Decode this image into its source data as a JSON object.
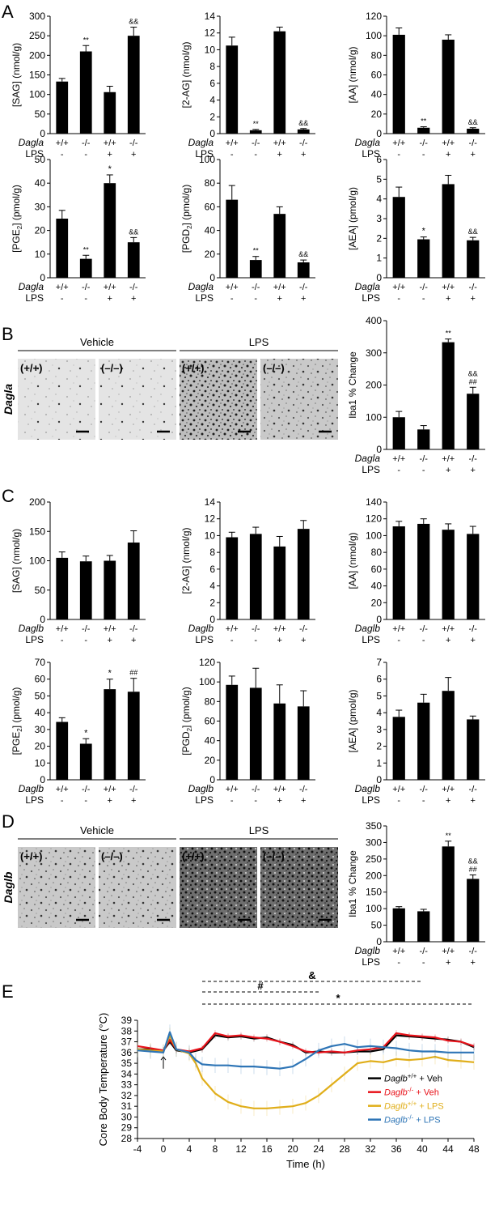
{
  "panels": {
    "A": "A",
    "B": "B",
    "C": "C",
    "D": "D",
    "E": "E"
  },
  "groups": {
    "dagla": "Dagla",
    "daglb": "Daglb",
    "lps": "LPS",
    "genotypes": [
      "+/+",
      "-/-",
      "+/+",
      "-/-"
    ],
    "lps_flags": [
      "-",
      "-",
      "+",
      "+"
    ]
  },
  "images": {
    "vehicle": "Vehicle",
    "lps": "LPS",
    "tags": [
      "(+/+)",
      "(–/–)",
      "(+/+)",
      "(–/–)"
    ],
    "dagla_textures": [
      "sparse",
      "sparse",
      "dense",
      "medium"
    ],
    "daglb_textures": [
      "medium",
      "medium",
      "dark",
      "dark"
    ]
  },
  "chart_data": [
    {
      "id": "A1",
      "type": "bar",
      "ylabel": "[SAG] (nmol/g)",
      "ylim": [
        0,
        300
      ],
      "yticks": [
        0,
        50,
        100,
        150,
        200,
        250,
        300
      ],
      "genotype_label": "Dagla",
      "values": [
        133,
        210,
        106,
        250
      ],
      "errors": [
        8,
        15,
        15,
        22
      ],
      "sig": [
        "",
        "**",
        "",
        "&&"
      ]
    },
    {
      "id": "A2",
      "type": "bar",
      "ylabel": "[2-AG] (nmol/g)",
      "ylim": [
        0,
        14
      ],
      "yticks": [
        0,
        2,
        4,
        6,
        8,
        10,
        12,
        14
      ],
      "genotype_label": "Dagla",
      "values": [
        10.5,
        0.4,
        12.2,
        0.5
      ],
      "errors": [
        1.0,
        0.1,
        0.5,
        0.1
      ],
      "sig": [
        "",
        "**",
        "",
        "&&"
      ]
    },
    {
      "id": "A3",
      "type": "bar",
      "ylabel": "[AA] (nmol/g)",
      "ylim": [
        0,
        120
      ],
      "yticks": [
        0,
        20,
        40,
        60,
        80,
        100,
        120
      ],
      "genotype_label": "Dagla",
      "values": [
        101,
        6,
        96,
        5
      ],
      "errors": [
        7,
        1,
        5,
        1
      ],
      "sig": [
        "",
        "**",
        "",
        "&&"
      ]
    },
    {
      "id": "A4",
      "type": "bar",
      "ylabel": "[PGE2] (pmol/g)",
      "ylabel_sub": "2",
      "ylim": [
        0,
        50
      ],
      "yticks": [
        0,
        10,
        20,
        30,
        40,
        50
      ],
      "genotype_label": "Dagla",
      "values": [
        25,
        8,
        40,
        15
      ],
      "errors": [
        3.5,
        1.5,
        3.5,
        2
      ],
      "sig": [
        "",
        "**",
        "*",
        "&&"
      ]
    },
    {
      "id": "A5",
      "type": "bar",
      "ylabel": "[PGD2] (pmol/g)",
      "ylabel_sub": "2",
      "ylim": [
        0,
        100
      ],
      "yticks": [
        0,
        20,
        40,
        60,
        80,
        100
      ],
      "genotype_label": "Dagla",
      "values": [
        66,
        15,
        54,
        13
      ],
      "errors": [
        12,
        3,
        6,
        2
      ],
      "sig": [
        "",
        "**",
        "",
        "&&"
      ]
    },
    {
      "id": "A6",
      "type": "bar",
      "ylabel": "[AEA] (pmol/g)",
      "ylim": [
        0,
        6
      ],
      "yticks": [
        0,
        1,
        2,
        3,
        4,
        5,
        6
      ],
      "genotype_label": "Dagla",
      "values": [
        4.1,
        1.95,
        4.75,
        1.9
      ],
      "errors": [
        0.5,
        0.12,
        0.45,
        0.15
      ],
      "sig": [
        "",
        "*",
        "",
        "&&"
      ]
    },
    {
      "id": "B",
      "type": "bar",
      "ylabel": "Iba1 % Change",
      "ylim": [
        0,
        400
      ],
      "yticks": [
        0,
        100,
        200,
        300,
        400
      ],
      "genotype_label": "Dagla",
      "values": [
        100,
        62,
        333,
        173
      ],
      "errors": [
        18,
        12,
        10,
        20
      ],
      "sig": [
        "",
        "",
        "**",
        "&&|##"
      ]
    },
    {
      "id": "C1",
      "type": "bar",
      "ylabel": "[SAG] (nmol/g)",
      "ylim": [
        0,
        200
      ],
      "yticks": [
        0,
        50,
        100,
        150,
        200
      ],
      "genotype_label": "Daglb",
      "values": [
        105,
        99,
        100,
        131
      ],
      "errors": [
        10,
        9,
        9,
        20
      ],
      "sig": [
        "",
        "",
        "",
        ""
      ]
    },
    {
      "id": "C2",
      "type": "bar",
      "ylabel": "[2-AG] (nmol/g)",
      "ylim": [
        0,
        14
      ],
      "yticks": [
        0,
        2,
        4,
        6,
        8,
        10,
        12,
        14
      ],
      "genotype_label": "Daglb",
      "values": [
        9.8,
        10.2,
        8.7,
        10.8
      ],
      "errors": [
        0.6,
        0.8,
        1.2,
        1.0
      ],
      "sig": [
        "",
        "",
        "",
        ""
      ]
    },
    {
      "id": "C3",
      "type": "bar",
      "ylabel": "[AA] (nmol/g)",
      "ylim": [
        0,
        140
      ],
      "yticks": [
        0,
        20,
        40,
        60,
        80,
        100,
        120,
        140
      ],
      "genotype_label": "Daglb",
      "values": [
        111,
        114,
        107,
        102
      ],
      "errors": [
        6,
        6,
        7,
        9
      ],
      "sig": [
        "",
        "",
        "",
        ""
      ]
    },
    {
      "id": "C4",
      "type": "bar",
      "ylabel": "[PGE2] (pmol/g)",
      "ylabel_sub": "2",
      "ylim": [
        0,
        70
      ],
      "yticks": [
        0,
        10,
        20,
        30,
        40,
        50,
        60,
        70
      ],
      "genotype_label": "Daglb",
      "values": [
        34.5,
        21.5,
        54,
        52.5
      ],
      "errors": [
        2.5,
        3,
        6,
        8
      ],
      "sig": [
        "",
        "*",
        "*",
        "##"
      ]
    },
    {
      "id": "C5",
      "type": "bar",
      "ylabel": "[PGD2] (pmol/g)",
      "ylabel_sub": "2",
      "ylim": [
        0,
        120
      ],
      "yticks": [
        0,
        20,
        40,
        60,
        80,
        100,
        120
      ],
      "genotype_label": "Daglb",
      "values": [
        97,
        94,
        78,
        75
      ],
      "errors": [
        9,
        20,
        19,
        16
      ],
      "sig": [
        "",
        "",
        "",
        ""
      ]
    },
    {
      "id": "C6",
      "type": "bar",
      "ylabel": "[AEA] (pmol/g)",
      "ylim": [
        0,
        7
      ],
      "yticks": [
        0,
        1,
        2,
        3,
        4,
        5,
        6,
        7
      ],
      "genotype_label": "Daglb",
      "values": [
        3.75,
        4.6,
        5.3,
        3.6
      ],
      "errors": [
        0.4,
        0.5,
        0.8,
        0.2
      ],
      "sig": [
        "",
        "",
        "",
        ""
      ]
    },
    {
      "id": "D",
      "type": "bar",
      "ylabel": "Iba1 % Change",
      "ylim": [
        0,
        350
      ],
      "yticks": [
        0,
        50,
        100,
        150,
        200,
        250,
        300,
        350
      ],
      "genotype_label": "Daglb",
      "values": [
        101,
        92,
        288,
        190
      ],
      "errors": [
        5,
        6,
        16,
        12
      ],
      "sig": [
        "",
        "",
        "**",
        "&&|##"
      ]
    },
    {
      "id": "E",
      "type": "line",
      "xlabel": "Time (h)",
      "ylabel": "Core Body Temperature (°C)",
      "xlim": [
        -4,
        48
      ],
      "ylim": [
        28,
        39
      ],
      "xticks": [
        -4,
        0,
        4,
        8,
        12,
        16,
        20,
        24,
        28,
        32,
        36,
        40,
        44,
        48
      ],
      "yticks": [
        28,
        29,
        30,
        31,
        32,
        33,
        34,
        35,
        36,
        37,
        38,
        39
      ],
      "legend_position": "lower-right",
      "sig_lines": [
        {
          "label": "&",
          "x1": 6,
          "x2": 40
        },
        {
          "label": "#",
          "x1": 6,
          "x2": 24
        },
        {
          "label": "*",
          "x1": 6,
          "x2": 48
        }
      ],
      "arrow_x": 0,
      "series": [
        {
          "name": "Daglb+/+ + Veh",
          "gene": "Daglb",
          "sup": "+/+",
          "suffix": " + Veh",
          "color": "#000000",
          "x": [
            -4,
            -2,
            0,
            1,
            2,
            4,
            6,
            8,
            10,
            12,
            14,
            16,
            18,
            20,
            22,
            24,
            26,
            28,
            30,
            32,
            34,
            36,
            38,
            40,
            42,
            44,
            46,
            48
          ],
          "y": [
            36.3,
            36.3,
            36.2,
            37.0,
            36.2,
            36.0,
            36.3,
            37.6,
            37.4,
            37.5,
            37.3,
            37.4,
            37.0,
            36.7,
            36.0,
            36.1,
            36.0,
            36.0,
            36.1,
            36.1,
            36.3,
            37.6,
            37.5,
            37.4,
            37.3,
            37.2,
            37.0,
            36.5
          ]
        },
        {
          "name": "Daglb-/- + Veh",
          "gene": "Daglb",
          "sup": "-/-",
          "suffix": " + Veh",
          "color": "#e8121a",
          "x": [
            -4,
            -2,
            0,
            1,
            2,
            4,
            6,
            8,
            10,
            12,
            14,
            16,
            18,
            20,
            22,
            24,
            26,
            28,
            30,
            32,
            34,
            36,
            38,
            40,
            42,
            44,
            46,
            48
          ],
          "y": [
            36.6,
            36.4,
            36.2,
            37.2,
            36.3,
            36.1,
            36.4,
            37.8,
            37.5,
            37.6,
            37.4,
            37.3,
            37.0,
            36.6,
            36.1,
            36.0,
            36.1,
            36.0,
            36.2,
            36.3,
            36.5,
            37.8,
            37.6,
            37.5,
            37.4,
            37.1,
            37.0,
            36.6
          ]
        },
        {
          "name": "Daglb+/+ + LPS",
          "gene": "Daglb",
          "sup": "+/+",
          "suffix": " + LPS",
          "color": "#e0ae1a",
          "x": [
            -4,
            -2,
            0,
            1,
            2,
            4,
            5,
            6,
            8,
            10,
            12,
            14,
            16,
            18,
            20,
            22,
            24,
            26,
            28,
            30,
            32,
            34,
            36,
            38,
            40,
            42,
            44,
            46,
            48
          ],
          "y": [
            36.3,
            36.2,
            36.1,
            37.6,
            36.3,
            35.9,
            35.0,
            33.6,
            32.2,
            31.4,
            31.0,
            30.8,
            30.8,
            30.9,
            31.0,
            31.3,
            32.0,
            33.0,
            34.0,
            35.0,
            35.2,
            35.1,
            35.4,
            35.3,
            35.4,
            35.6,
            35.3,
            35.2,
            35.1
          ]
        },
        {
          "name": "Daglb-/- + LPS",
          "gene": "Daglb",
          "sup": "-/-",
          "suffix": " + LPS",
          "color": "#2e75b6",
          "x": [
            -4,
            -2,
            0,
            1,
            2,
            4,
            5,
            6,
            8,
            10,
            12,
            14,
            16,
            18,
            20,
            22,
            24,
            26,
            28,
            30,
            32,
            34,
            36,
            38,
            40,
            42,
            44,
            46,
            48
          ],
          "y": [
            36.2,
            36.1,
            36.0,
            37.9,
            36.3,
            36.0,
            35.3,
            34.9,
            34.8,
            34.8,
            34.7,
            34.7,
            34.6,
            34.5,
            34.7,
            35.4,
            36.2,
            36.6,
            36.8,
            36.5,
            36.6,
            36.5,
            36.4,
            36.2,
            36.1,
            36.1,
            36.0,
            36.0,
            36.0
          ]
        }
      ]
    }
  ]
}
